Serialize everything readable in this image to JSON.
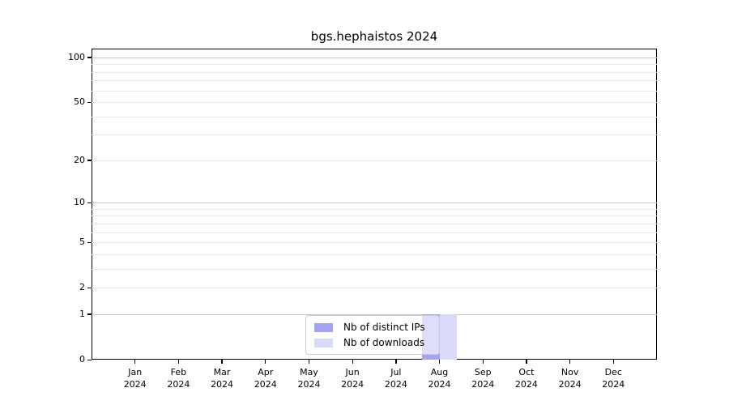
{
  "figure": {
    "background": "#ffffff"
  },
  "chart_data": {
    "type": "bar",
    "title": "bgs.hephaistos 2024",
    "x_categories": [
      {
        "label": "Jan",
        "year": "2024"
      },
      {
        "label": "Feb",
        "year": "2024"
      },
      {
        "label": "Mar",
        "year": "2024"
      },
      {
        "label": "Apr",
        "year": "2024"
      },
      {
        "label": "May",
        "year": "2024"
      },
      {
        "label": "Jun",
        "year": "2024"
      },
      {
        "label": "Jul",
        "year": "2024"
      },
      {
        "label": "Aug",
        "year": "2024"
      },
      {
        "label": "Sep",
        "year": "2024"
      },
      {
        "label": "Oct",
        "year": "2024"
      },
      {
        "label": "Nov",
        "year": "2024"
      },
      {
        "label": "Dec",
        "year": "2024"
      }
    ],
    "series": [
      {
        "name": "Nb of distinct IPs",
        "color": "#a3a3f0",
        "values": [
          0,
          0,
          0,
          0,
          0,
          0,
          0,
          1,
          0,
          0,
          0,
          0
        ]
      },
      {
        "name": "Nb of downloads",
        "color": "#d9d9f8",
        "values": [
          0,
          0,
          0,
          0,
          0,
          0,
          0,
          1,
          0,
          0,
          0,
          0
        ]
      }
    ],
    "y_axis": {
      "scale": "log1p",
      "max": 114.7,
      "ticks": [
        0,
        1,
        2,
        5,
        10,
        20,
        50,
        100
      ],
      "major_gridlines": [
        1,
        10,
        100
      ],
      "minor_gridlines": [
        2,
        3,
        4,
        5,
        6,
        7,
        8,
        9,
        20,
        30,
        40,
        50,
        60,
        70,
        80,
        90
      ]
    },
    "x_axis": {
      "tick_count": 12
    },
    "legend": {
      "position": "lower center"
    },
    "colors": {
      "major_grid": "#c5c5c5",
      "minor_grid": "#ebebeb",
      "spine": "#000000"
    }
  }
}
